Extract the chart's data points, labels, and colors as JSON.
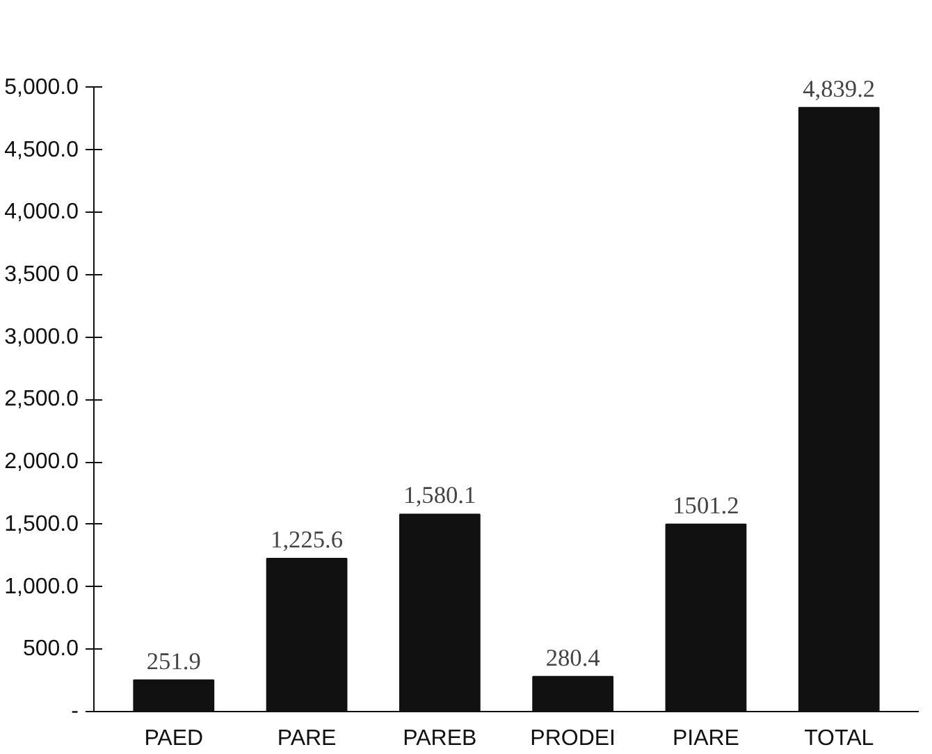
{
  "chart_data": {
    "type": "bar",
    "categories": [
      "PAED",
      "PARE",
      "PAREB",
      "PRODEI",
      "PIARE",
      "TOTAL"
    ],
    "values": [
      251.9,
      1225.6,
      1580.1,
      280.4,
      1501.2,
      4839.2
    ],
    "value_labels": [
      "251.9",
      "1,225.6",
      "1,580.1",
      "280.4",
      "1501.2",
      "4,839.2"
    ],
    "color": "#111111",
    "ylim": [
      0,
      5000
    ],
    "yticks": [
      {
        "value": 0,
        "label": "-"
      },
      {
        "value": 500,
        "label": "500.0"
      },
      {
        "value": 1000,
        "label": "1,000.0"
      },
      {
        "value": 1500,
        "label": "1,500.0"
      },
      {
        "value": 2000,
        "label": "2,000.0"
      },
      {
        "value": 2500,
        "label": "2,500.0"
      },
      {
        "value": 3000,
        "label": "3,000.0"
      },
      {
        "value": 3500,
        "label": "3,500 0"
      },
      {
        "value": 4000,
        "label": "4,000.0"
      },
      {
        "value": 4500,
        "label": "4,500.0"
      },
      {
        "value": 5000,
        "label": "5,000.0"
      }
    ],
    "grid": false
  }
}
